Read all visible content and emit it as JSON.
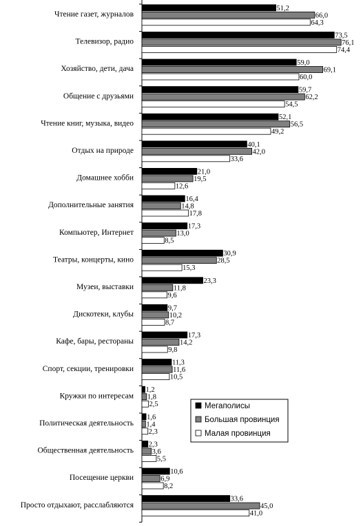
{
  "chart_data": {
    "type": "bar",
    "orientation": "horizontal",
    "categories": [
      "Чтение газет, журналов",
      "Телевизор, радио",
      "Хозяйство, дети, дача",
      "Общение с друзьями",
      "Чтение книг, музыка, видео",
      "Отдых на природе",
      "Домашнее хобби",
      "Дополнительные занятия",
      "Компьютер, Интернет",
      "Театры, концерты, кино",
      "Музеи, выставки",
      "Дискотеки, клубы",
      "Кафе, бары, рестораны",
      "Спорт, секции, тренировки",
      "Кружки по интересам",
      "Политическая деятельность",
      "Общественная деятельность",
      "Посещение церкви",
      "Просто отдыхают, расслабляются"
    ],
    "series": [
      {
        "name": "Мегаполисы",
        "color": "#000000",
        "values": [
          51.2,
          73.5,
          59.0,
          59.7,
          52.1,
          40.1,
          21.0,
          16.4,
          17.3,
          30.9,
          23.3,
          9.7,
          17.3,
          11.3,
          1.2,
          1.6,
          2.3,
          10.6,
          33.6
        ],
        "labels": [
          "51,2",
          "73,5",
          "59,0",
          "59,7",
          "52,1",
          "40,1",
          "21,0",
          "16,4",
          "17,3",
          "30,9",
          "23,3",
          "9,7",
          "17,3",
          "11,3",
          "1,2",
          "1,6",
          "2,3",
          "10,6",
          "33,6"
        ]
      },
      {
        "name": "Большая провинция",
        "color": "#808080",
        "values": [
          66.0,
          76.1,
          69.1,
          62.2,
          56.5,
          42.0,
          19.5,
          14.8,
          13.0,
          28.5,
          11.8,
          10.2,
          14.2,
          11.6,
          1.8,
          1.4,
          3.6,
          6.9,
          45.0
        ],
        "labels": [
          "66,0",
          "76,1",
          "69,1",
          "62,2",
          "56,5",
          "42,0",
          "19,5",
          "14,8",
          "13,0",
          "28,5",
          "11,8",
          "10,2",
          "14,2",
          "11,6",
          "1,8",
          "1,4",
          "3,6",
          "6,9",
          "45,0"
        ]
      },
      {
        "name": "Малая провинция",
        "color": "#ffffff",
        "values": [
          64.3,
          74.4,
          60.0,
          54.5,
          49.2,
          33.6,
          12.6,
          17.8,
          8.5,
          15.3,
          9.6,
          8.7,
          9.8,
          10.5,
          2.5,
          2.3,
          5.5,
          8.2,
          41.0
        ],
        "labels": [
          "64,3",
          "74,4",
          "60,0",
          "54,5",
          "49,2",
          "33,6",
          "12,6",
          "17,8",
          "8,5",
          "15,3",
          "9,6",
          "8,7",
          "9,8",
          "10,5",
          "2,5",
          "2,3",
          "5,5",
          "8,2",
          "41,0"
        ]
      }
    ],
    "xlim": [
      0,
      80
    ],
    "grid": false,
    "legend_position": "bottom-right",
    "title": "",
    "xlabel": "",
    "ylabel": ""
  }
}
